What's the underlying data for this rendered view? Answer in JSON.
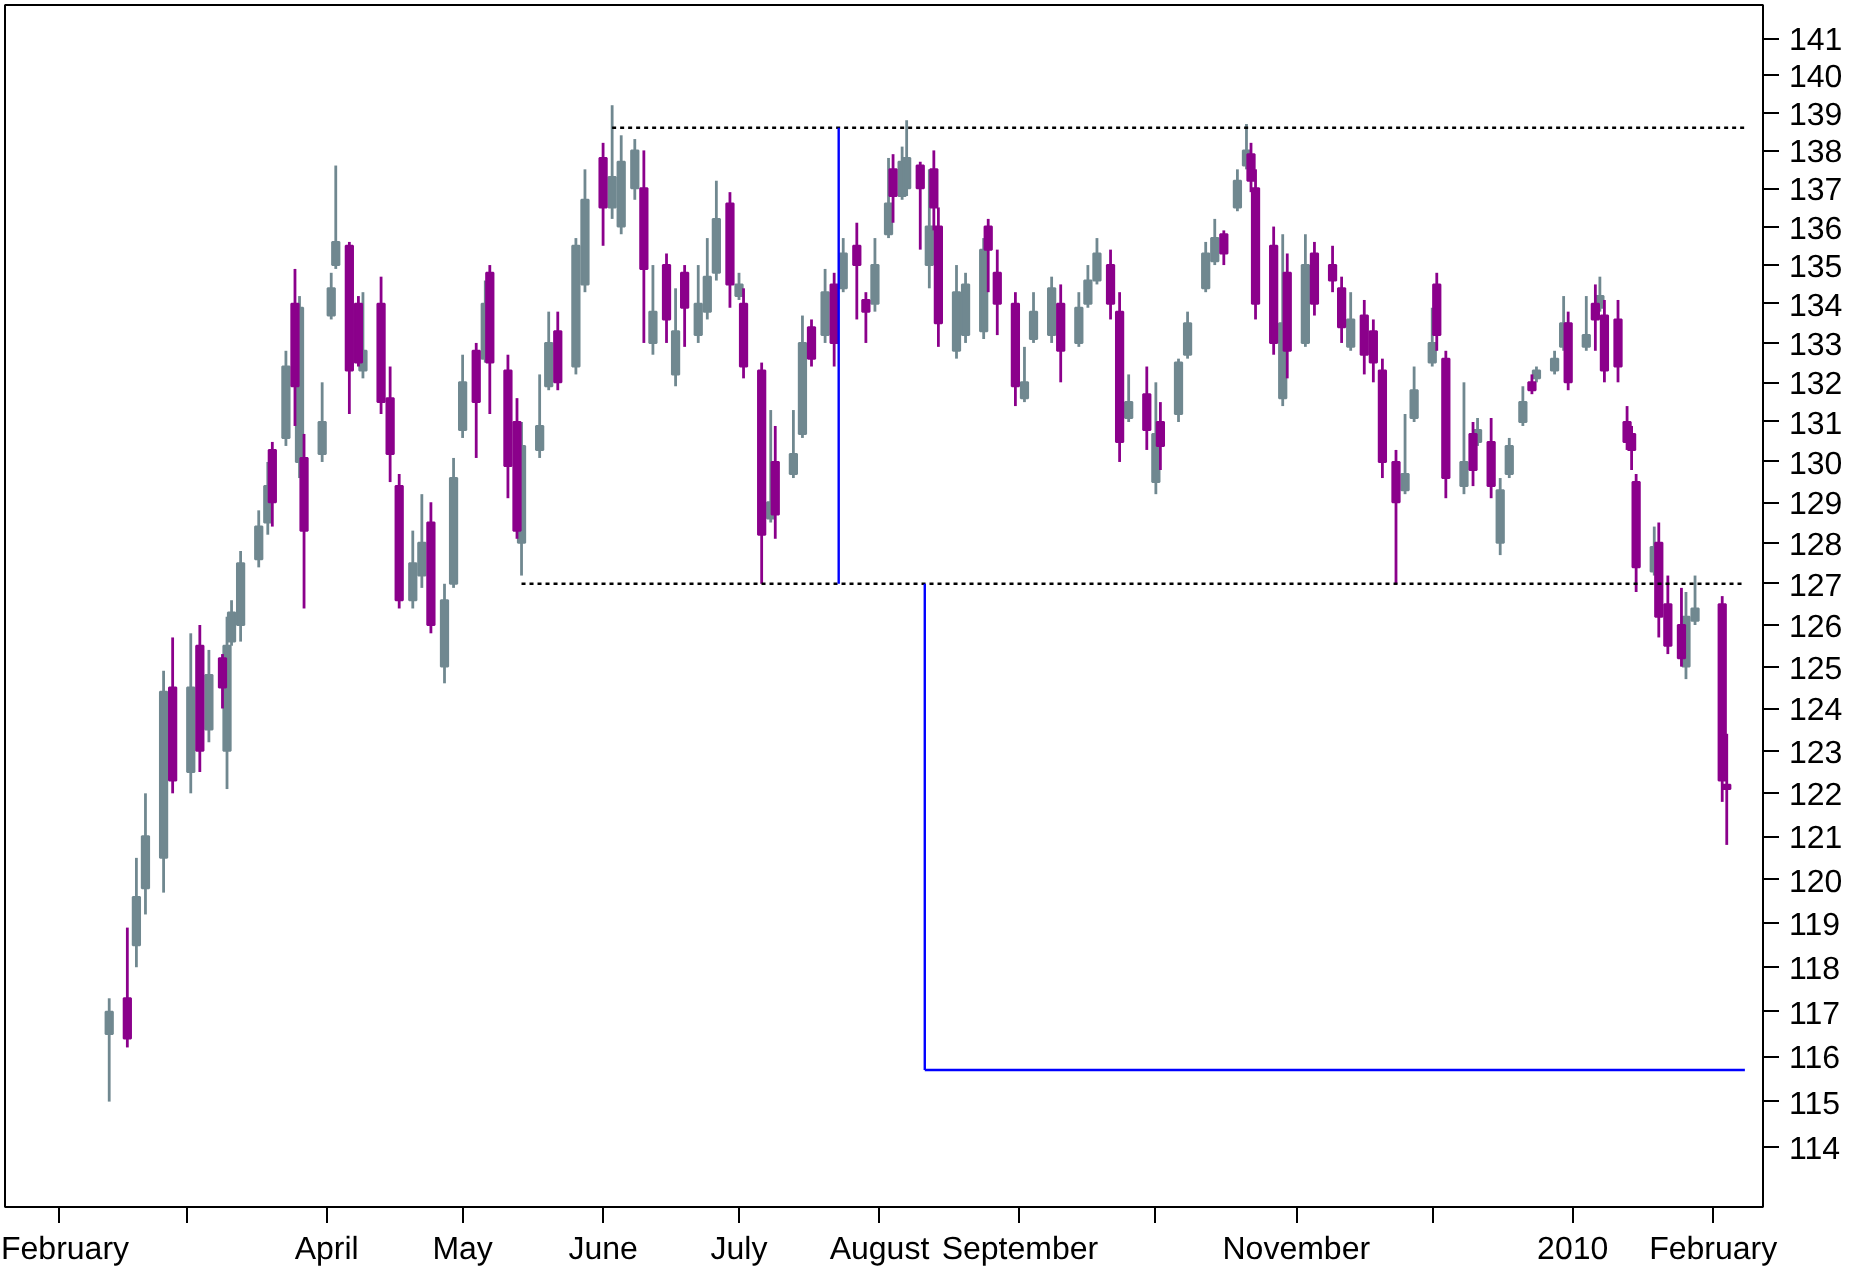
{
  "chart_data": {
    "type": "candlestick",
    "log": true,
    "xlim": [
      "2009-01-20",
      "2010-02-12"
    ],
    "xticks": [
      {
        "value": "2009-02-01",
        "label": "February"
      },
      {
        "value": "2009-03-01",
        "label": null
      },
      {
        "value": "2009-04-01",
        "label": "April"
      },
      {
        "value": "2009-05-01",
        "label": "May"
      },
      {
        "value": "2009-06-01",
        "label": "June"
      },
      {
        "value": "2009-07-01",
        "label": "July"
      },
      {
        "value": "2009-08-01",
        "label": "August"
      },
      {
        "value": "2009-09-01",
        "label": "September"
      },
      {
        "value": "2009-10-01",
        "label": null
      },
      {
        "value": "2009-11-01",
        "label": "November"
      },
      {
        "value": "2009-12-01",
        "label": null
      },
      {
        "value": "2010-01-01",
        "label": "2010"
      },
      {
        "value": "2010-02-01",
        "label": "February"
      }
    ],
    "ylim": [
      112.7,
      141.9
    ],
    "yticks": [
      114,
      115,
      116,
      117,
      118,
      119,
      120,
      121,
      122,
      123,
      124,
      125,
      126,
      127,
      128,
      129,
      130,
      131,
      132,
      133,
      134,
      135,
      136,
      137,
      138,
      139,
      140,
      141
    ],
    "series": [
      {
        "color": "#708890",
        "x": [
          "2009-02-12",
          "2009-02-18",
          "2009-02-20",
          "2009-02-24",
          "2009-03-02",
          "2009-03-06",
          "2009-03-10",
          "2009-03-11",
          "2009-03-13",
          "2009-03-17",
          "2009-03-19",
          "2009-03-23",
          "2009-03-26",
          "2009-03-31",
          "2009-04-02",
          "2009-04-03",
          "2009-04-09",
          "2009-04-20",
          "2009-04-22",
          "2009-04-27",
          "2009-04-29",
          "2009-05-01",
          "2009-05-06",
          "2009-05-14",
          "2009-05-18",
          "2009-05-20",
          "2009-05-26",
          "2009-05-28",
          "2009-06-03",
          "2009-06-05",
          "2009-06-08",
          "2009-06-12",
          "2009-06-17",
          "2009-06-22",
          "2009-06-24",
          "2009-06-26",
          "2009-07-01",
          "2009-07-08",
          "2009-07-13",
          "2009-07-15",
          "2009-07-20",
          "2009-07-24",
          "2009-07-31",
          "2009-08-03",
          "2009-08-06",
          "2009-08-07",
          "2009-08-12",
          "2009-08-18",
          "2009-08-20",
          "2009-08-24",
          "2009-09-02",
          "2009-09-04",
          "2009-09-08",
          "2009-09-14",
          "2009-09-16",
          "2009-09-18",
          "2009-09-25",
          "2009-10-01",
          "2009-10-06",
          "2009-10-08",
          "2009-10-12",
          "2009-10-14",
          "2009-10-19",
          "2009-10-21",
          "2009-10-29",
          "2009-11-03",
          "2009-11-13",
          "2009-11-25",
          "2009-11-27",
          "2009-12-01",
          "2009-12-08",
          "2009-12-11",
          "2009-12-16",
          "2009-12-18",
          "2009-12-21",
          "2009-12-24",
          "2009-12-28",
          "2009-12-30",
          "2010-01-04",
          "2010-01-07",
          "2010-01-19",
          "2010-01-26",
          "2010-01-28"
        ],
        "ohlc": [
          [
            116.5,
            117.3,
            115.0,
            117.0
          ],
          [
            118.5,
            120.5,
            118.0,
            119.6
          ],
          [
            119.8,
            122.0,
            119.2,
            121.0
          ],
          [
            120.5,
            124.9,
            119.7,
            124.4
          ],
          [
            122.5,
            125.8,
            122.0,
            124.5
          ],
          [
            123.5,
            125.4,
            123.2,
            124.8
          ],
          [
            123.0,
            126.2,
            122.1,
            125.5
          ],
          [
            125.6,
            126.6,
            125.5,
            126.3
          ],
          [
            126.0,
            127.8,
            125.6,
            127.5
          ],
          [
            127.6,
            128.8,
            127.4,
            128.4
          ],
          [
            128.5,
            130.0,
            128.2,
            129.4
          ],
          [
            130.6,
            132.8,
            130.4,
            132.4
          ],
          [
            130.0,
            134.2,
            129.6,
            133.9
          ],
          [
            130.2,
            132.0,
            130.0,
            131.0
          ],
          [
            133.7,
            134.8,
            133.6,
            134.4
          ],
          [
            135.0,
            137.6,
            134.9,
            135.6
          ],
          [
            132.3,
            134.3,
            132.1,
            132.8
          ],
          [
            126.6,
            128.3,
            126.4,
            127.5
          ],
          [
            127.2,
            129.2,
            126.9,
            128.0
          ],
          [
            125.0,
            127.0,
            124.6,
            126.6
          ],
          [
            127.0,
            130.1,
            126.9,
            129.6
          ],
          [
            130.8,
            132.7,
            130.6,
            132.0
          ],
          [
            132.6,
            134.6,
            132.5,
            134.0
          ],
          [
            128.0,
            131.0,
            127.2,
            130.4
          ],
          [
            130.3,
            132.2,
            130.1,
            130.9
          ],
          [
            131.9,
            133.8,
            131.8,
            133.0
          ],
          [
            132.4,
            135.7,
            132.2,
            135.5
          ],
          [
            134.5,
            137.5,
            134.3,
            136.7
          ],
          [
            136.5,
            139.2,
            136.2,
            137.3
          ],
          [
            136.0,
            138.4,
            135.8,
            137.7
          ],
          [
            137.0,
            138.3,
            136.7,
            138.0
          ],
          [
            133.0,
            135.0,
            132.7,
            133.8
          ],
          [
            132.2,
            134.4,
            131.9,
            133.3
          ],
          [
            133.2,
            135.0,
            133.0,
            134.0
          ],
          [
            133.8,
            135.7,
            133.6,
            134.7
          ],
          [
            134.8,
            137.2,
            134.6,
            136.2
          ],
          [
            134.2,
            134.8,
            134.1,
            134.5
          ],
          [
            128.6,
            131.3,
            128.5,
            129.0
          ],
          [
            129.7,
            131.3,
            129.6,
            130.2
          ],
          [
            130.7,
            133.7,
            130.6,
            133.0
          ],
          [
            133.2,
            134.9,
            133.0,
            134.3
          ],
          [
            134.4,
            135.7,
            134.3,
            135.3
          ],
          [
            134.0,
            135.7,
            133.8,
            135.0
          ],
          [
            135.8,
            137.8,
            135.7,
            136.6
          ],
          [
            136.8,
            138.1,
            136.7,
            137.7
          ],
          [
            137.0,
            138.8,
            136.8,
            137.8
          ],
          [
            135.0,
            137.5,
            134.4,
            136.0
          ],
          [
            132.8,
            135.0,
            132.6,
            134.3
          ],
          [
            133.2,
            134.8,
            133.0,
            134.5
          ],
          [
            133.3,
            135.7,
            133.1,
            135.4
          ],
          [
            131.6,
            132.9,
            131.5,
            132.0
          ],
          [
            133.1,
            134.3,
            133.0,
            133.8
          ],
          [
            133.2,
            134.7,
            133.0,
            134.4
          ],
          [
            133.0,
            134.3,
            132.9,
            133.9
          ],
          [
            134.0,
            135.0,
            133.9,
            134.6
          ],
          [
            134.6,
            135.7,
            134.5,
            135.3
          ],
          [
            131.1,
            132.2,
            131.0,
            131.5
          ],
          [
            129.5,
            132.0,
            129.2,
            130.7
          ],
          [
            131.2,
            132.6,
            131.0,
            132.5
          ],
          [
            132.7,
            133.8,
            132.6,
            133.5
          ],
          [
            134.4,
            135.6,
            134.3,
            135.3
          ],
          [
            135.1,
            136.2,
            135.0,
            135.7
          ],
          [
            136.5,
            137.5,
            136.4,
            137.2
          ],
          [
            137.6,
            138.7,
            137.5,
            138.0
          ],
          [
            131.6,
            135.8,
            131.4,
            133.5
          ],
          [
            133.0,
            135.8,
            132.9,
            135.0
          ],
          [
            132.9,
            134.3,
            132.8,
            133.6
          ],
          [
            129.3,
            131.2,
            129.2,
            129.7
          ],
          [
            131.1,
            132.4,
            131.0,
            131.8
          ],
          [
            132.5,
            133.9,
            132.4,
            133.0
          ],
          [
            129.4,
            132.0,
            129.2,
            130.0
          ],
          [
            130.5,
            131.1,
            130.4,
            130.8
          ],
          [
            128.0,
            129.6,
            127.7,
            129.3
          ],
          [
            129.7,
            130.6,
            129.6,
            130.4
          ],
          [
            131.0,
            131.9,
            130.9,
            131.5
          ],
          [
            132.1,
            132.4,
            132.0,
            132.3
          ],
          [
            132.3,
            132.8,
            132.2,
            132.6
          ],
          [
            132.9,
            134.2,
            132.8,
            133.5
          ],
          [
            132.9,
            134.2,
            132.8,
            133.2
          ],
          [
            133.9,
            134.7,
            133.8,
            134.2
          ],
          [
            127.3,
            128.4,
            127.2,
            127.9
          ],
          [
            125.0,
            126.8,
            124.7,
            126.2
          ],
          [
            126.1,
            127.2,
            126.0,
            126.4
          ]
        ]
      },
      {
        "color": "#8b008b",
        "x": [
          "2009-02-16",
          "2009-02-26",
          "2009-03-04",
          "2009-03-09",
          "2009-03-20",
          "2009-03-25",
          "2009-03-27",
          "2009-04-06",
          "2009-04-08",
          "2009-04-13",
          "2009-04-15",
          "2009-04-17",
          "2009-04-24",
          "2009-05-04",
          "2009-05-07",
          "2009-05-11",
          "2009-05-13",
          "2009-05-22",
          "2009-06-01",
          "2009-06-10",
          "2009-06-15",
          "2009-06-19",
          "2009-06-29",
          "2009-07-02",
          "2009-07-06",
          "2009-07-09",
          "2009-07-17",
          "2009-07-22",
          "2009-07-27",
          "2009-07-29",
          "2009-08-04",
          "2009-08-10",
          "2009-08-13",
          "2009-08-14",
          "2009-08-25",
          "2009-08-27",
          "2009-08-31",
          "2009-09-10",
          "2009-09-21",
          "2009-09-23",
          "2009-09-29",
          "2009-10-02",
          "2009-10-16",
          "2009-10-22",
          "2009-10-23",
          "2009-10-27",
          "2009-10-30",
          "2009-11-05",
          "2009-11-09",
          "2009-11-11",
          "2009-11-16",
          "2009-11-18",
          "2009-11-20",
          "2009-11-23",
          "2009-12-02",
          "2009-12-04",
          "2009-12-10",
          "2009-12-14",
          "2009-12-23",
          "2009-12-31",
          "2010-01-06",
          "2010-01-08",
          "2010-01-11",
          "2010-01-13",
          "2010-01-14",
          "2010-01-15",
          "2010-01-20",
          "2010-01-22",
          "2010-01-25",
          "2010-02-03",
          "2010-02-04"
        ],
        "ohlc": [
          [
            117.3,
            118.9,
            116.2,
            116.4
          ],
          [
            124.5,
            125.7,
            122.0,
            122.3
          ],
          [
            125.5,
            126.0,
            122.5,
            123.0
          ],
          [
            125.2,
            125.3,
            124.0,
            124.5
          ],
          [
            130.3,
            130.5,
            128.4,
            129.0
          ],
          [
            134.0,
            134.9,
            130.9,
            131.9
          ],
          [
            130.1,
            130.7,
            126.4,
            128.3
          ],
          [
            135.5,
            135.6,
            131.2,
            132.3
          ],
          [
            134.0,
            134.2,
            132.4,
            132.5
          ],
          [
            134.0,
            134.7,
            131.2,
            131.5
          ],
          [
            131.6,
            132.4,
            129.5,
            130.2
          ],
          [
            129.4,
            129.7,
            126.4,
            126.6
          ],
          [
            128.5,
            129.0,
            125.8,
            126.0
          ],
          [
            132.8,
            133.0,
            130.1,
            131.5
          ],
          [
            134.8,
            135.0,
            131.2,
            132.5
          ],
          [
            132.3,
            132.7,
            129.1,
            129.9
          ],
          [
            131.0,
            131.6,
            128.1,
            128.3
          ],
          [
            133.3,
            133.8,
            131.8,
            132.0
          ],
          [
            137.8,
            138.2,
            135.5,
            136.5
          ],
          [
            137.0,
            138.0,
            133.0,
            134.9
          ],
          [
            135.0,
            135.3,
            133.0,
            133.6
          ],
          [
            134.8,
            135.0,
            132.9,
            133.9
          ],
          [
            136.6,
            136.9,
            133.9,
            134.5
          ],
          [
            134.0,
            134.4,
            132.1,
            132.4
          ],
          [
            132.3,
            132.5,
            127.0,
            128.2
          ],
          [
            130.0,
            130.9,
            128.1,
            128.7
          ],
          [
            133.4,
            133.6,
            132.4,
            132.6
          ],
          [
            134.5,
            134.8,
            132.4,
            133.0
          ],
          [
            135.5,
            136.1,
            133.6,
            135.0
          ],
          [
            134.1,
            134.3,
            133.0,
            133.8
          ],
          [
            137.5,
            137.9,
            136.1,
            136.8
          ],
          [
            137.6,
            137.7,
            135.4,
            137.0
          ],
          [
            137.5,
            138.0,
            135.9,
            136.5
          ],
          [
            136.0,
            136.5,
            132.9,
            133.5
          ],
          [
            136.0,
            136.2,
            134.3,
            135.4
          ],
          [
            134.8,
            135.4,
            133.2,
            134.0
          ],
          [
            134.0,
            134.3,
            131.4,
            131.9
          ],
          [
            134.0,
            134.5,
            132.0,
            132.8
          ],
          [
            135.0,
            135.4,
            133.6,
            134.0
          ],
          [
            133.8,
            134.3,
            130.0,
            130.5
          ],
          [
            131.7,
            132.4,
            130.3,
            130.8
          ],
          [
            131.0,
            131.5,
            129.8,
            130.4
          ],
          [
            135.8,
            135.9,
            135.0,
            135.3
          ],
          [
            137.9,
            138.2,
            136.9,
            137.2
          ],
          [
            137.0,
            137.5,
            133.6,
            134.0
          ],
          [
            135.5,
            136.0,
            132.7,
            133.0
          ],
          [
            134.8,
            135.3,
            132.1,
            132.8
          ],
          [
            135.3,
            135.6,
            133.7,
            134.0
          ],
          [
            135.0,
            135.5,
            134.3,
            134.6
          ],
          [
            134.4,
            134.7,
            133.0,
            133.4
          ],
          [
            133.7,
            134.1,
            132.2,
            132.7
          ],
          [
            133.3,
            133.6,
            132.0,
            132.5
          ],
          [
            132.3,
            132.6,
            129.6,
            130.0
          ],
          [
            130.0,
            130.3,
            127.0,
            129.0
          ],
          [
            134.5,
            134.8,
            132.8,
            133.2
          ],
          [
            132.6,
            132.8,
            129.1,
            129.6
          ],
          [
            130.7,
            131.0,
            129.4,
            129.8
          ],
          [
            130.5,
            131.1,
            129.1,
            129.4
          ],
          [
            132.0,
            132.2,
            131.7,
            131.8
          ],
          [
            133.5,
            133.8,
            131.8,
            132.0
          ],
          [
            134.0,
            134.5,
            132.8,
            133.6
          ],
          [
            133.7,
            134.1,
            132.0,
            132.3
          ],
          [
            133.6,
            134.1,
            132.0,
            132.4
          ],
          [
            131.0,
            131.4,
            130.3,
            130.5
          ],
          [
            130.7,
            130.9,
            129.8,
            130.3
          ],
          [
            129.5,
            129.7,
            126.8,
            127.4
          ],
          [
            128.0,
            128.5,
            125.7,
            126.2
          ],
          [
            126.5,
            127.2,
            125.3,
            125.5
          ],
          [
            126.0,
            126.9,
            125.0,
            125.2
          ],
          [
            126.5,
            126.7,
            121.8,
            122.3
          ],
          [
            122.2,
            123.4,
            120.8,
            122.1
          ]
        ]
      },
      {
        "type": "line",
        "color": "#000000",
        "line_style": "dotted",
        "x": [
          "2009-06-03",
          "2010-02-08"
        ],
        "values": [
          138.6,
          138.6
        ]
      },
      {
        "type": "line",
        "color": "#000000",
        "line_style": "dotted",
        "x": [
          "2009-05-14",
          "2010-02-08"
        ],
        "values": [
          127,
          127
        ]
      },
      {
        "type": "line",
        "color": "#0000ff",
        "line_style": "solid",
        "x": [
          "2009-07-23",
          "2009-07-23"
        ],
        "values": [
          127,
          138.6
        ]
      },
      {
        "type": "line",
        "color": "#0000ff",
        "line_style": "solid",
        "x": [
          "2009-08-11",
          "2009-08-11"
        ],
        "values": [
          127,
          115.7
        ]
      },
      {
        "type": "line",
        "color": "#0000ff",
        "line_style": "solid",
        "x": [
          "2009-08-11",
          "2010-02-08"
        ],
        "values": [
          115.7,
          115.7
        ]
      }
    ]
  }
}
